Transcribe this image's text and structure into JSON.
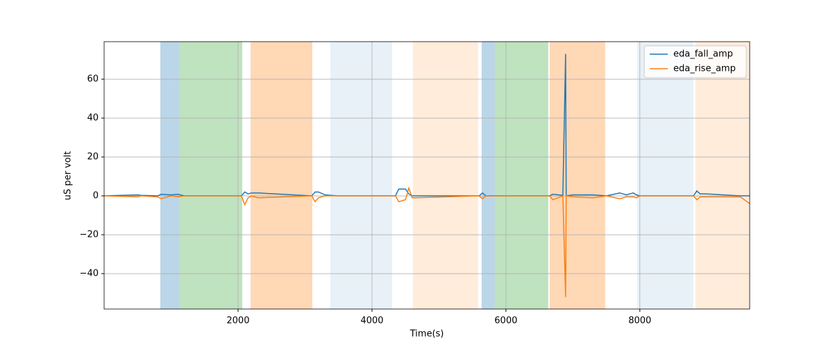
{
  "chart_data": {
    "type": "line",
    "xlabel": "Time(s)",
    "ylabel": "uS per volt",
    "x": [
      0,
      500,
      550,
      800,
      850,
      1000,
      1100,
      1200,
      2050,
      2100,
      2150,
      2200,
      2300,
      3100,
      3150,
      3200,
      3300,
      3500,
      4350,
      4400,
      4500,
      4550,
      4600,
      5600,
      5650,
      5700,
      6650,
      6700,
      6850,
      6891,
      6900,
      7000,
      7300,
      7500,
      7700,
      7800,
      7900,
      7950,
      8000,
      8800,
      8850,
      8900,
      9000,
      9500,
      9640
    ],
    "series": [
      {
        "name": "eda_fall_amp",
        "color": "#1f77b4",
        "values": [
          0,
          0.5,
          0.3,
          0,
          0.8,
          0.5,
          0.8,
          0,
          0,
          2,
          1,
          1.5,
          1.5,
          0,
          2,
          2,
          0.5,
          0,
          0,
          3.5,
          3.5,
          1,
          0,
          0,
          1.5,
          0,
          0,
          0.8,
          0.3,
          73,
          0,
          0.5,
          0.5,
          0,
          1.5,
          0.5,
          1.5,
          0.5,
          0,
          0,
          2.5,
          1,
          1,
          0,
          0
        ]
      },
      {
        "name": "eda_rise_amp",
        "color": "#ff7f0e",
        "values": [
          0,
          -0.5,
          0,
          -0.5,
          -1.5,
          0,
          -0.5,
          0,
          0,
          -4.5,
          -1,
          0,
          -1,
          0,
          -3,
          -1,
          0,
          0,
          0,
          -3,
          -2,
          4,
          -1,
          0,
          -1.5,
          0,
          0,
          -2,
          0,
          -52,
          0,
          -0.5,
          -1,
          0,
          -1.5,
          -0.5,
          -0.5,
          -1,
          0,
          0,
          -2,
          -0.5,
          -0.5,
          -0.5,
          -4
        ]
      }
    ],
    "spans": [
      {
        "x": [
          839,
          1119
        ],
        "color": "#1f77b4",
        "alpha": 0.3
      },
      {
        "x": [
          1119,
          2062
        ],
        "color": "#2ca02c",
        "alpha": 0.3
      },
      {
        "x": [
          2187,
          3109
        ],
        "color": "#ff7f0e",
        "alpha": 0.3
      },
      {
        "x": [
          3378,
          4301
        ],
        "color": "#1f77b4",
        "alpha": 0.1
      },
      {
        "x": [
          4611,
          5585
        ],
        "color": "#ff7f0e",
        "alpha": 0.15
      },
      {
        "x": [
          5637,
          5834
        ],
        "color": "#1f77b4",
        "alpha": 0.3
      },
      {
        "x": [
          5834,
          6632
        ],
        "color": "#2ca02c",
        "alpha": 0.3
      },
      {
        "x": [
          6653,
          7482
        ],
        "color": "#ff7f0e",
        "alpha": 0.3
      },
      {
        "x": [
          7959,
          8798
        ],
        "color": "#1f77b4",
        "alpha": 0.1
      },
      {
        "x": [
          8829,
          9640
        ],
        "color": "#ff7f0e",
        "alpha": 0.15
      }
    ],
    "xlim": [
      0,
      9640
    ],
    "ylim": [
      -58.2,
      79.3
    ],
    "xticks": [
      2000,
      4000,
      6000,
      8000
    ],
    "yticks": [
      {
        "value": -40,
        "label": "−40"
      },
      {
        "value": -20,
        "label": "−20"
      },
      0,
      20,
      40,
      60
    ],
    "grid": true,
    "legend": "upper right"
  }
}
